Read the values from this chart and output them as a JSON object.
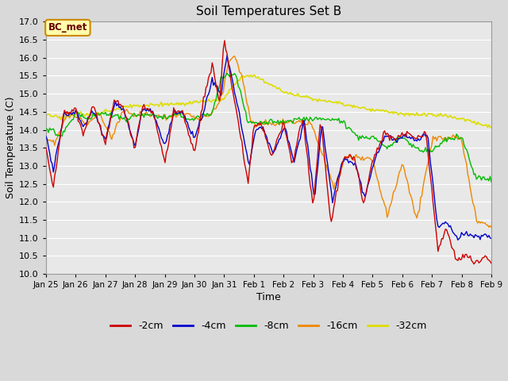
{
  "title": "Soil Temperatures Set B",
  "xlabel": "Time",
  "ylabel": "Soil Temperature (C)",
  "ylim": [
    10.0,
    17.0
  ],
  "yticks": [
    10.0,
    10.5,
    11.0,
    11.5,
    12.0,
    12.5,
    13.0,
    13.5,
    14.0,
    14.5,
    15.0,
    15.5,
    16.0,
    16.5,
    17.0
  ],
  "xtick_labels": [
    "Jan 25",
    "Jan 26",
    "Jan 27",
    "Jan 28",
    "Jan 29",
    "Jan 30",
    "Jan 31",
    "Feb 1",
    "Feb 2",
    "Feb 3",
    "Feb 4",
    "Feb 5",
    "Feb 6",
    "Feb 7",
    "Feb 8",
    "Feb 9"
  ],
  "colors": {
    "-2cm": "#cc0000",
    "-4cm": "#0000cc",
    "-8cm": "#00bb00",
    "-16cm": "#ee8800",
    "-32cm": "#dddd00"
  },
  "legend_labels": [
    "-2cm",
    "-4cm",
    "-8cm",
    "-16cm",
    "-32cm"
  ],
  "annotation_text": "BC_met",
  "annotation_bg": "#ffffaa",
  "annotation_border": "#cc8800",
  "plot_bg": "#e8e8e8",
  "grid_color": "#ffffff",
  "title_fontsize": 11,
  "figsize": [
    6.4,
    4.8
  ],
  "dpi": 100
}
